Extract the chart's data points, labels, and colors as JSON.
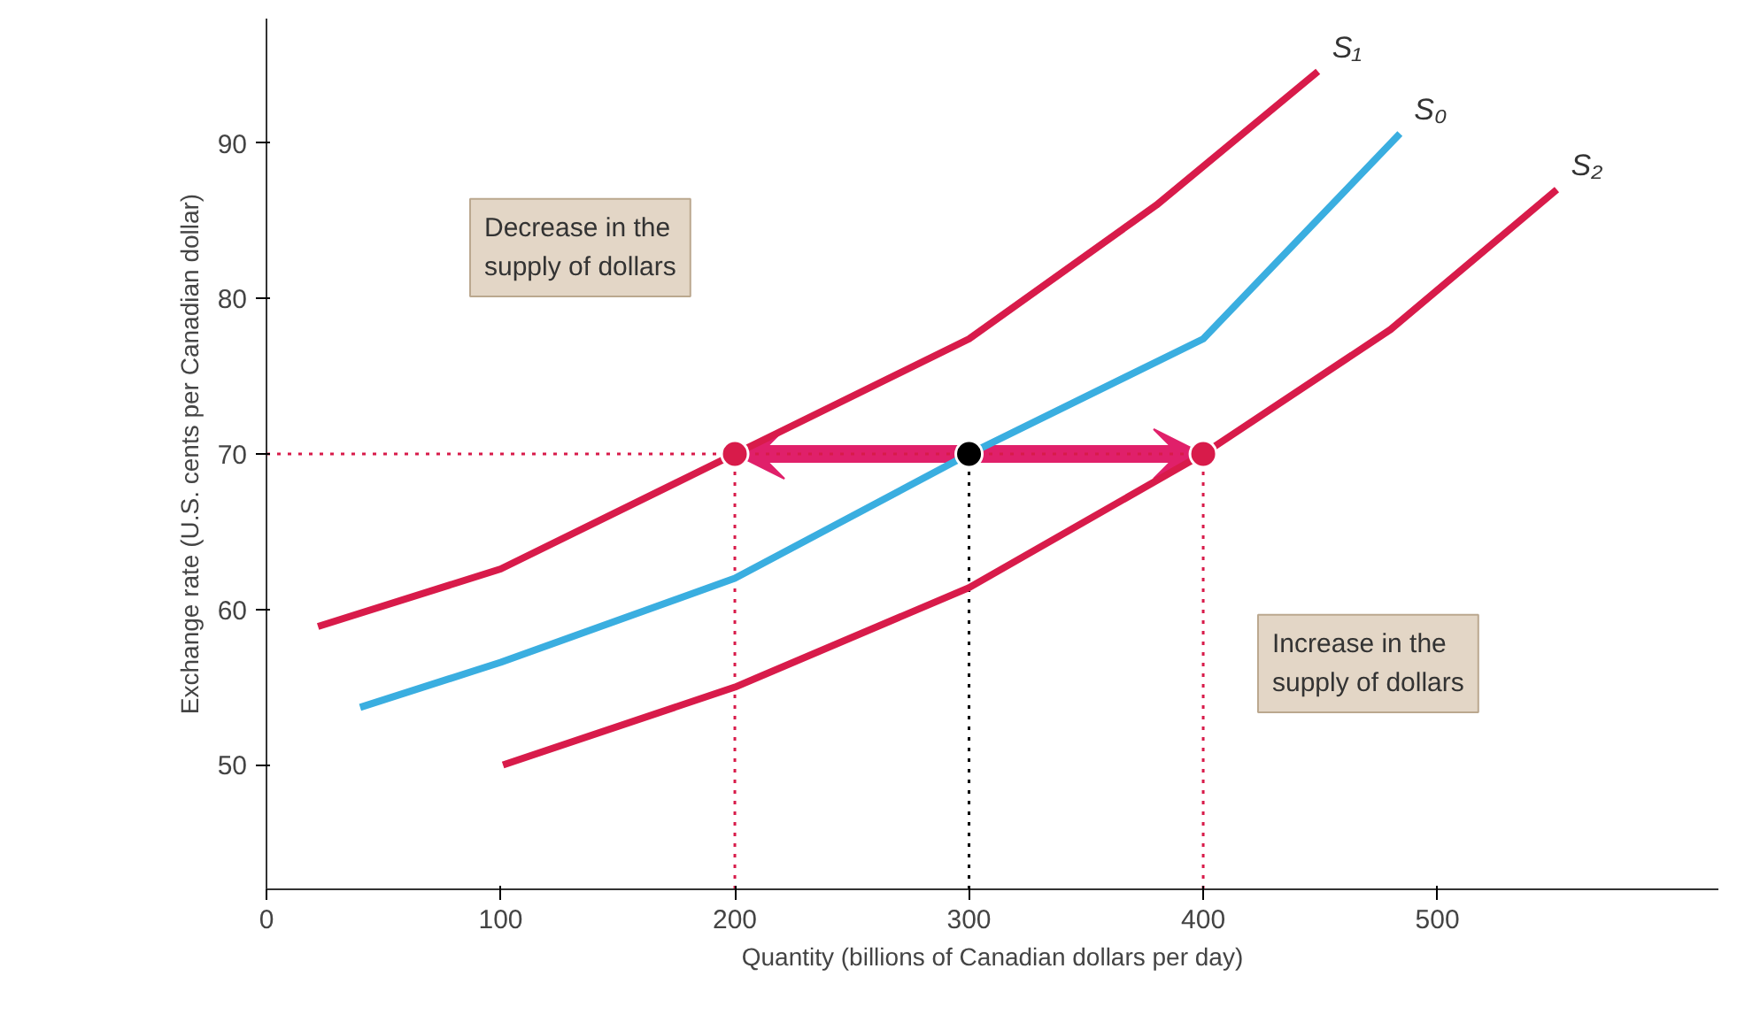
{
  "chart_data": {
    "type": "line",
    "xlabel": "Quantity (billions of Canadian dollars per day)",
    "ylabel": "Exchange rate (U.S. cents per Canadian dollar)",
    "xlim": [
      0,
      620
    ],
    "ylim": [
      42,
      98
    ],
    "xticks": [
      0,
      100,
      200,
      300,
      400,
      500
    ],
    "yticks": [
      50,
      60,
      70,
      80,
      90
    ],
    "grid": false,
    "marker": "none",
    "line_style": "solid",
    "series": [
      {
        "name": "S₁",
        "color": "#d81b4a",
        "x": [
          22,
          100,
          200,
          300,
          380,
          449
        ],
        "values": [
          58.9,
          62.6,
          70,
          77.4,
          86,
          94.6
        ]
      },
      {
        "name": "S₀",
        "color": "#3aaee0",
        "x": [
          40,
          100,
          200,
          300,
          400,
          484
        ],
        "values": [
          53.7,
          56.6,
          62,
          70,
          77.4,
          90.6
        ]
      },
      {
        "name": "S₂",
        "color": "#d81b4a",
        "x": [
          101,
          200,
          300,
          400,
          480,
          551
        ],
        "values": [
          50,
          55,
          61.4,
          70,
          78,
          87
        ]
      },
      {
        "type": "scatter",
        "marker": "circle",
        "colors": [
          "#d81b4a",
          "#000000",
          "#d81b4a"
        ],
        "x": [
          200,
          300,
          400
        ],
        "values": [
          70,
          70,
          70
        ]
      }
    ],
    "ref_lines": [
      {
        "axis": "y",
        "value": 70,
        "color": "#d81b4a",
        "line_style": "dotted"
      },
      {
        "axis": "x",
        "value": 200,
        "color": "#d81b4a",
        "line_style": "dotted"
      },
      {
        "axis": "x",
        "value": 300,
        "color": "#000000",
        "line_style": "dotted"
      },
      {
        "axis": "x",
        "value": 400,
        "color": "#d81b4a",
        "line_style": "dotted"
      }
    ],
    "annotations": [
      "Decrease in the\nsupply of dollars",
      "Increase in the\nsupply of dollars"
    ]
  }
}
